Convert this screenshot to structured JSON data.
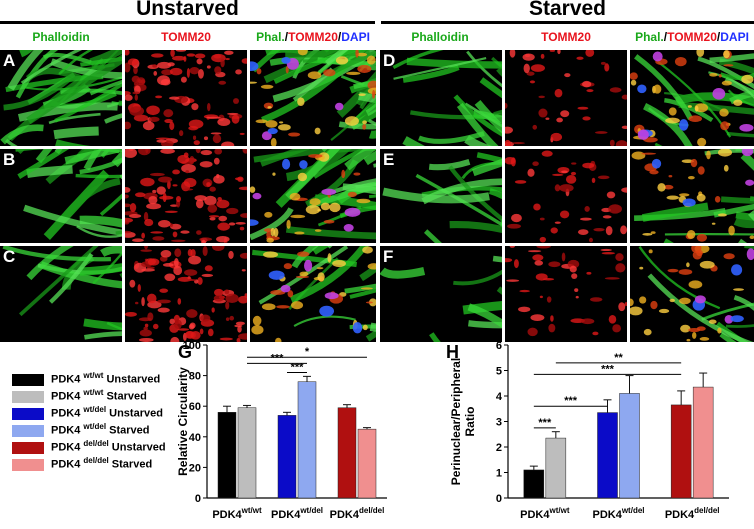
{
  "headers": {
    "unstarved": "Unstarved",
    "starved": "Starved"
  },
  "column_labels": {
    "phalloidin": "Phalloidin",
    "tomm20": "TOMM20",
    "merge_phal": "Phal.",
    "merge_sep1": "/",
    "merge_tomm": "TOMM20",
    "merge_sep2": "/",
    "merge_dapi": "DAPI"
  },
  "panel_letters": [
    "A",
    "B",
    "C",
    "D",
    "E",
    "F"
  ],
  "colors": {
    "phalloidin": "#1aa81a",
    "tomm20": "#e8141e",
    "dapi": "#2030ff"
  },
  "legend": [
    {
      "gene": "PDK4",
      "geno": "wt/wt",
      "cond": "Unstarved",
      "color": "#000000"
    },
    {
      "gene": "PDK4",
      "geno": "wt/wt",
      "cond": "Starved",
      "color": "#bdbdbd"
    },
    {
      "gene": "PDK4",
      "geno": "wt/del",
      "cond": "Unstarved",
      "color": "#0b0bc8"
    },
    {
      "gene": "PDK4",
      "geno": "wt/del",
      "cond": "Starved",
      "color": "#8ea8f0"
    },
    {
      "gene": "PDK4",
      "geno": "del/del",
      "cond": "Unstarved",
      "color": "#b01010"
    },
    {
      "gene": "PDK4",
      "geno": "del/del",
      "cond": "Starved",
      "color": "#f08f8f"
    }
  ],
  "chart_data": [
    {
      "panel": "G",
      "type": "bar",
      "ylabel": "Relative Circularity",
      "ylim": [
        0,
        100
      ],
      "yticks": [
        "0",
        "20",
        "40",
        "60",
        "80",
        "100"
      ],
      "category_base": "PDK4",
      "categories": [
        "wt/wt",
        "wt/del",
        "del/del"
      ],
      "series": [
        {
          "name": "Unstarved",
          "values": [
            56,
            54,
            59
          ],
          "errors": [
            4,
            2,
            2
          ]
        },
        {
          "name": "Starved",
          "values": [
            59,
            76,
            45
          ],
          "errors": [
            1.5,
            3.5,
            1
          ]
        }
      ],
      "significance": [
        {
          "label": "*",
          "from": [
            0,
            1
          ],
          "to": [
            2,
            1
          ],
          "level": 92
        },
        {
          "label": "***",
          "from": [
            0,
            1
          ],
          "to": [
            1,
            1
          ],
          "level": 88
        },
        {
          "label": "***",
          "from": [
            1,
            0
          ],
          "to": [
            1,
            1
          ],
          "level": 82
        }
      ]
    },
    {
      "panel": "H",
      "type": "bar",
      "ylabel_line1": "Perinuclear/Peripheral",
      "ylabel_line2": "Ratio",
      "ylim": [
        0,
        6
      ],
      "yticks": [
        "0",
        "1",
        "2",
        "3",
        "4",
        "5",
        "6"
      ],
      "category_base": "PDK4",
      "categories": [
        "wt/wt",
        "wt/del",
        "del/del"
      ],
      "series": [
        {
          "name": "Unstarved",
          "values": [
            1.1,
            3.35,
            3.65
          ],
          "errors": [
            0.15,
            0.5,
            0.55
          ]
        },
        {
          "name": "Starved",
          "values": [
            2.35,
            4.1,
            4.35
          ],
          "errors": [
            0.25,
            0.7,
            0.55
          ]
        }
      ],
      "significance": [
        {
          "label": "**",
          "from": [
            0,
            1
          ],
          "to": [
            2,
            0
          ],
          "level": 5.3
        },
        {
          "label": "***",
          "from": [
            0,
            0
          ],
          "to": [
            2,
            0
          ],
          "level": 4.85
        },
        {
          "label": "***",
          "from": [
            0,
            0
          ],
          "to": [
            1,
            0
          ],
          "level": 3.6
        },
        {
          "label": "***",
          "from": [
            0,
            0
          ],
          "to": [
            0,
            1
          ],
          "level": 2.75
        }
      ]
    }
  ]
}
